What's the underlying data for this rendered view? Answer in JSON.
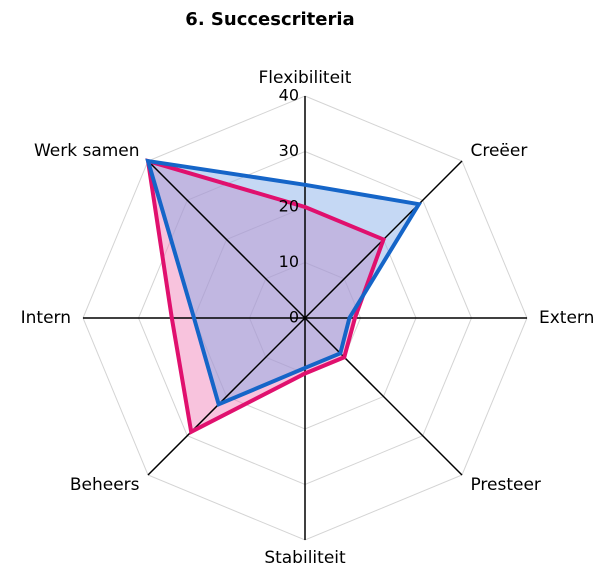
{
  "chart_data": {
    "type": "radar",
    "title": "6. Succescriteria",
    "categories": [
      "Flexibiliteit",
      "Creëer",
      "Extern",
      "Presteer",
      "Stabiliteit",
      "Beheers",
      "Intern",
      "Werk samen"
    ],
    "series": [
      {
        "color": "#e0106e",
        "fill": "#f07ab4",
        "values": [
          20,
          20,
          9,
          10,
          10,
          29,
          24,
          40
        ]
      },
      {
        "color": "#1565c8",
        "fill": "#7fa8e6",
        "values": [
          24,
          29,
          8,
          9,
          9,
          22,
          20,
          40
        ]
      }
    ],
    "ylim": [
      0,
      40
    ],
    "yticks": [
      0,
      10,
      20,
      30,
      40
    ],
    "grid": true
  }
}
